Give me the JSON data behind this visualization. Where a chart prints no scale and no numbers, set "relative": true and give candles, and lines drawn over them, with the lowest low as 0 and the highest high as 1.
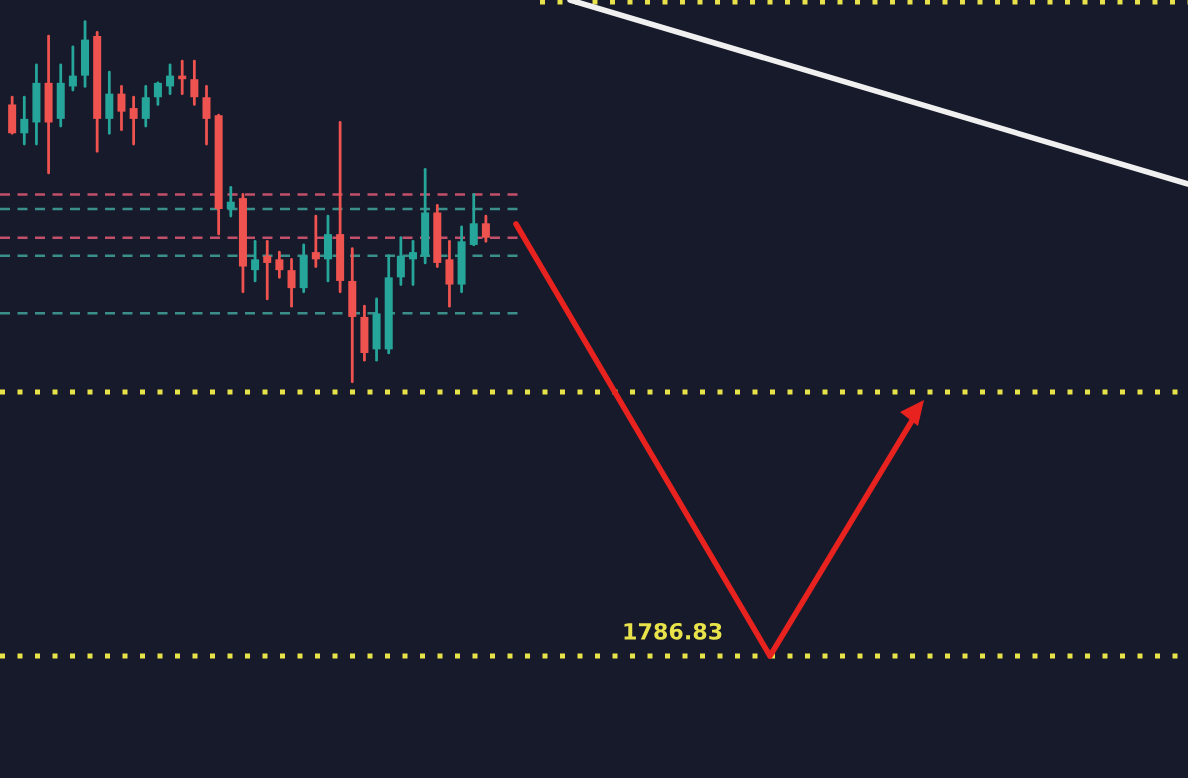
{
  "chart_data": {
    "type": "candlestick",
    "relative": true,
    "categories": [
      null,
      null,
      null,
      null,
      null,
      null,
      null,
      null,
      null,
      null,
      null,
      null,
      null,
      null,
      null,
      null,
      null,
      null,
      null,
      null,
      null,
      null,
      null,
      null,
      null,
      null,
      null,
      null,
      null,
      null,
      null,
      null,
      null,
      null,
      null,
      null,
      null,
      null,
      null,
      null
    ],
    "ohlc": [
      [
        0.77,
        0.79,
        0.69,
        0.69
      ],
      [
        0.69,
        0.79,
        0.66,
        0.73
      ],
      [
        0.72,
        0.88,
        0.66,
        0.83
      ],
      [
        0.83,
        0.96,
        0.58,
        0.72
      ],
      [
        0.73,
        0.88,
        0.71,
        0.83
      ],
      [
        0.82,
        0.93,
        0.81,
        0.85
      ],
      [
        0.85,
        1.0,
        0.82,
        0.95
      ],
      [
        0.96,
        0.97,
        0.64,
        0.73
      ],
      [
        0.73,
        0.86,
        0.69,
        0.8
      ],
      [
        0.8,
        0.82,
        0.7,
        0.75
      ],
      [
        0.76,
        0.79,
        0.66,
        0.73
      ],
      [
        0.73,
        0.82,
        0.71,
        0.79
      ],
      [
        0.79,
        0.83,
        0.77,
        0.83
      ],
      [
        0.82,
        0.88,
        0.8,
        0.85
      ],
      [
        0.85,
        0.89,
        0.8,
        0.84
      ],
      [
        0.84,
        0.89,
        0.77,
        0.79
      ],
      [
        0.79,
        0.82,
        0.66,
        0.73
      ],
      [
        0.74,
        0.74,
        0.41,
        0.48
      ],
      [
        0.48,
        0.54,
        0.46,
        0.5
      ],
      [
        0.51,
        0.52,
        0.25,
        0.32
      ],
      [
        0.31,
        0.39,
        0.28,
        0.34
      ],
      [
        0.35,
        0.39,
        0.23,
        0.33
      ],
      [
        0.34,
        0.36,
        0.29,
        0.31
      ],
      [
        0.31,
        0.34,
        0.21,
        0.26
      ],
      [
        0.26,
        0.38,
        0.25,
        0.35
      ],
      [
        0.36,
        0.46,
        0.32,
        0.34
      ],
      [
        0.34,
        0.46,
        0.28,
        0.41
      ],
      [
        0.41,
        0.72,
        0.25,
        0.28
      ],
      [
        0.28,
        0.37,
        0.0,
        0.18
      ],
      [
        0.18,
        0.21,
        0.06,
        0.08
      ],
      [
        0.09,
        0.23,
        0.06,
        0.19
      ],
      [
        0.09,
        0.35,
        0.08,
        0.29
      ],
      [
        0.29,
        0.4,
        0.27,
        0.35
      ],
      [
        0.34,
        0.39,
        0.27,
        0.36
      ],
      [
        0.35,
        0.59,
        0.33,
        0.47
      ],
      [
        0.47,
        0.49,
        0.32,
        0.33
      ],
      [
        0.34,
        0.39,
        0.21,
        0.27
      ],
      [
        0.27,
        0.43,
        0.25,
        0.39
      ],
      [
        0.38,
        0.52,
        0.38,
        0.44
      ],
      [
        0.44,
        0.46,
        0.39,
        0.4
      ]
    ],
    "ref_lines": [
      {
        "axis": "y",
        "value": 0.52,
        "color": "#c2506a",
        "line_style": "dashed"
      },
      {
        "axis": "y",
        "value": 0.48,
        "color": "#3a8f8a",
        "line_style": "dashed"
      },
      {
        "axis": "y",
        "value": 0.4,
        "color": "#c2506a",
        "line_style": "dashed"
      },
      {
        "axis": "y",
        "value": 0.35,
        "color": "#3a8f8a",
        "line_style": "dashed"
      },
      {
        "axis": "y",
        "value": 0.19,
        "color": "#3a8f8a",
        "line_style": "dashed"
      }
    ],
    "annotations": [
      "1786.83"
    ]
  }
}
